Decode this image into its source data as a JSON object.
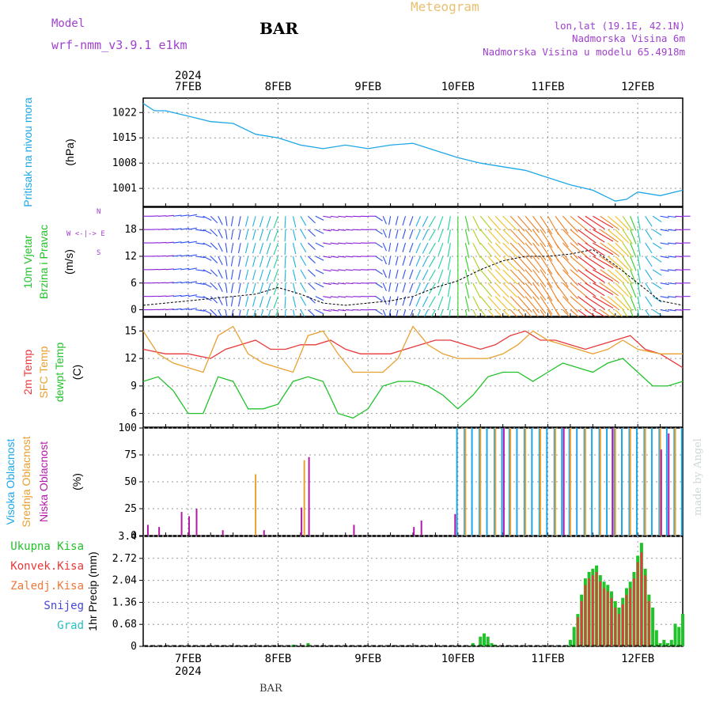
{
  "header": {
    "model_label": "Model",
    "model_name": "wrf-nmm_v3.9.1 e1km",
    "station": "BAR",
    "product": "Meteogram",
    "coords": "lon,lat (19.1E, 42.1N)",
    "elevation": "Nadmorska Visina 6m",
    "model_elevation": "Nadmorska Visina u modelu 65.4918m",
    "footer_station": "BAR",
    "watermark": "made by Angel"
  },
  "colors": {
    "pressure": "#1ea7e6",
    "temp2m": "#e8383a",
    "sfctemp": "#e8a030",
    "dewpoint": "#22c22a",
    "cloud_high": "#1ea7e6",
    "cloud_mid": "#e8a030",
    "cloud_low": "#b21aa8",
    "precip_total": "#22c22a",
    "precip_conv": "#e8383a",
    "precip_frozen": "#f07838",
    "precip_snow": "#4646d8",
    "precip_hail": "#25bfbf",
    "model_purple": "#a040d0"
  },
  "chart_data": {
    "type": "meteogram",
    "time_axis": {
      "year": "2024",
      "ticks": [
        "7FEB",
        "8FEB",
        "9FEB",
        "10FEB",
        "11FEB",
        "12FEB"
      ],
      "start_hour": -12,
      "end_hour": 132
    },
    "panels": [
      {
        "id": "pressure",
        "ylabel": [
          "Pritisak na nivou mora",
          "(hPa)"
        ],
        "yticks": [
          1001,
          1008,
          1015,
          1022
        ],
        "ylim": [
          996,
          1026
        ],
        "series": [
          {
            "name": "Pritisak na nivou mora",
            "x": [
              -12,
              -9,
              -6,
              0,
              6,
              12,
              18,
              24,
              30,
              36,
              42,
              48,
              54,
              60,
              66,
              72,
              78,
              84,
              90,
              96,
              102,
              108,
              114,
              117,
              120,
              126,
              132
            ],
            "y": [
              1024.5,
              1022.5,
              1022.5,
              1021,
              1019.5,
              1019,
              1016,
              1015,
              1013,
              1012,
              1013,
              1012,
              1013,
              1013.5,
              1011.5,
              1009.5,
              1008,
              1007,
              1006,
              1004,
              1002,
              1000.5,
              997.5,
              998,
              1000,
              999,
              1000.5
            ]
          }
        ]
      },
      {
        "id": "wind",
        "ylabel": [
          "10m Vjetar",
          "Brzina i Pravac",
          "(m/s)"
        ],
        "legend": [
          "N",
          "W",
          "<-",
          "|",
          "->",
          "E",
          "S"
        ],
        "yticks": [
          0,
          6,
          12,
          18
        ],
        "ylim": [
          -1.5,
          23
        ],
        "series": [
          {
            "name": "Brzina",
            "x": [
              -12,
              -6,
              0,
              6,
              12,
              18,
              24,
              30,
              36,
              42,
              48,
              54,
              60,
              66,
              72,
              78,
              84,
              90,
              96,
              102,
              108,
              114,
              120,
              126,
              132
            ],
            "y": [
              1,
              1.5,
              2,
              2.5,
              3,
              3.5,
              5,
              3.5,
              1.5,
              1,
              1.5,
              2,
              3,
              5,
              6.5,
              9,
              11,
              12,
              12,
              12.5,
              13.5,
              10,
              6,
              2,
              1
            ]
          }
        ],
        "direction_deg_by_hour": {
          "x": [
            -12,
            0,
            12,
            24,
            36,
            48,
            54,
            60,
            66,
            72,
            78,
            84,
            90,
            96,
            102,
            108,
            114,
            120,
            126,
            132
          ],
          "deg": [
            90,
            80,
            190,
            200,
            100,
            90,
            190,
            200,
            210,
            180,
            140,
            135,
            140,
            150,
            130,
            120,
            135,
            170,
            100,
            90
          ]
        }
      },
      {
        "id": "temperature",
        "ylabel": [
          "2m Temp",
          "SFC Temp",
          "dewpt Temp",
          "(C)"
        ],
        "yticks": [
          6,
          9,
          12,
          15
        ],
        "ylim": [
          4.5,
          16.5
        ],
        "series": [
          {
            "name": "2m Temp",
            "x": [
              -12,
              -6,
              0,
              6,
              10,
              14,
              18,
              22,
              26,
              30,
              34,
              38,
              42,
              46,
              50,
              54,
              58,
              62,
              66,
              70,
              74,
              78,
              82,
              86,
              90,
              94,
              98,
              102,
              106,
              110,
              114,
              118,
              122,
              126,
              132
            ],
            "y": [
              13,
              12.5,
              12.5,
              12,
              13,
              13.5,
              14,
              13,
              13,
              13.5,
              13.5,
              14,
              13,
              12.5,
              12.5,
              12.5,
              13,
              13.5,
              14,
              14,
              13.5,
              13,
              13.5,
              14.5,
              15,
              14,
              14,
              13.5,
              13,
              13.5,
              14,
              14.5,
              13,
              12.5,
              11
            ]
          },
          {
            "name": "SFC Temp",
            "x": [
              -12,
              -8,
              -4,
              0,
              4,
              8,
              12,
              16,
              20,
              24,
              28,
              32,
              36,
              40,
              44,
              48,
              52,
              56,
              60,
              64,
              68,
              72,
              76,
              80,
              84,
              88,
              92,
              96,
              100,
              104,
              108,
              112,
              116,
              120,
              126,
              132
            ],
            "y": [
              15,
              12.5,
              11.5,
              11,
              10.5,
              14.5,
              15.5,
              12.5,
              11.5,
              11,
              10.5,
              14.5,
              15,
              12.5,
              10.5,
              10.5,
              10.5,
              12,
              15.5,
              13.5,
              12.5,
              12,
              12,
              12,
              12.5,
              13.5,
              15,
              14,
              13.5,
              13,
              12.5,
              13,
              14,
              13,
              12.5,
              12.5
            ]
          },
          {
            "name": "dewpt Temp",
            "x": [
              -12,
              -8,
              -4,
              0,
              4,
              8,
              12,
              16,
              20,
              24,
              28,
              32,
              36,
              40,
              44,
              48,
              52,
              56,
              60,
              64,
              68,
              72,
              76,
              80,
              84,
              88,
              92,
              96,
              100,
              104,
              108,
              112,
              116,
              120,
              124,
              128,
              132
            ],
            "y": [
              9.5,
              10,
              8.5,
              6,
              6,
              10,
              9.5,
              6.5,
              6.5,
              7,
              9.5,
              10,
              9.5,
              6,
              5.5,
              6.5,
              9,
              9.5,
              9.5,
              9,
              8,
              6.5,
              8,
              10,
              10.5,
              10.5,
              9.5,
              10.5,
              11.5,
              11,
              10.5,
              11.5,
              12,
              10.5,
              9,
              9,
              9.5
            ]
          }
        ]
      },
      {
        "id": "clouds",
        "ylabel": [
          "Visoka Oblacnost",
          "Srednja Oblacnost",
          "Niska Oblacnost",
          "(%)"
        ],
        "yticks": [
          0,
          25,
          50,
          75,
          100
        ],
        "ylim": [
          0,
          100
        ],
        "series": [
          {
            "name": "Visoka Oblacnost",
            "x": [
              72,
              74,
              76,
              78,
              80,
              82,
              84,
              86,
              88,
              90,
              92,
              94,
              96,
              98,
              100,
              102,
              104,
              106,
              108,
              110,
              112,
              114,
              116,
              118,
              120,
              122,
              124,
              126,
              128,
              130,
              132
            ],
            "y": [
              100,
              100,
              100,
              100,
              100,
              100,
              100,
              100,
              100,
              100,
              100,
              100,
              100,
              100,
              100,
              100,
              100,
              100,
              100,
              100,
              100,
              100,
              100,
              100,
              100,
              100,
              100,
              100,
              100,
              100,
              100
            ]
          },
          {
            "name": "Srednja Oblacnost",
            "x": [
              18,
              31,
              74,
              78,
              82,
              86,
              90,
              94,
              98,
              102,
              106,
              110,
              114,
              118,
              122,
              126,
              130
            ],
            "y": [
              57,
              70,
              100,
              100,
              100,
              100,
              100,
              100,
              100,
              100,
              100,
              100,
              100,
              100,
              100,
              100,
              100
            ]
          },
          {
            "name": "Niska Oblacnost",
            "x": [
              -11,
              -8,
              -2,
              0,
              2,
              9,
              20,
              30,
              32,
              44,
              60,
              62,
              71,
              84,
              100,
              113,
              126,
              128
            ],
            "y": [
              10,
              8,
              22,
              18,
              25,
              5,
              5,
              26,
              73,
              10,
              8,
              14,
              20,
              100,
              100,
              100,
              80,
              95
            ]
          }
        ]
      },
      {
        "id": "precip",
        "ylabel": [
          "1hr Precip (mm)"
        ],
        "legend": [
          "Ukupna Kisa",
          "Konvek.Kisa",
          "Zaledj.Kisa",
          "Snijeg",
          "Grad"
        ],
        "yticks": [
          0,
          0.68,
          1.36,
          2.04,
          2.72,
          3.4
        ],
        "ylim": [
          0,
          3.4
        ],
        "series": [
          {
            "name": "Ukupna Kisa",
            "x": [
              28,
              32,
              76,
              78,
              79,
              80,
              81,
              82,
              102,
              103,
              104,
              105,
              106,
              107,
              108,
              109,
              110,
              111,
              112,
              113,
              114,
              115,
              116,
              117,
              118,
              119,
              120,
              121,
              122,
              123,
              124,
              125,
              126,
              127,
              128,
              129,
              130,
              131,
              132
            ],
            "y": [
              0.05,
              0.1,
              0.1,
              0.3,
              0.4,
              0.3,
              0.1,
              0.05,
              0.2,
              0.6,
              1.0,
              1.6,
              2.1,
              2.3,
              2.4,
              2.5,
              2.2,
              2.0,
              1.9,
              1.7,
              1.4,
              1.2,
              1.5,
              1.8,
              2.0,
              2.3,
              2.8,
              3.2,
              2.4,
              1.6,
              1.2,
              0.5,
              0.1,
              0.2,
              0.1,
              0.2,
              0.7,
              0.6,
              1.0
            ]
          },
          {
            "name": "Konvek.Kisa",
            "x": [
              104,
              105,
              106,
              107,
              108,
              109,
              110,
              111,
              112,
              113,
              114,
              115,
              116,
              117,
              118,
              119,
              120,
              121,
              122,
              123
            ],
            "y": [
              0.9,
              1.4,
              1.9,
              2.1,
              2.2,
              2.3,
              2.0,
              1.8,
              1.7,
              1.5,
              1.2,
              1.0,
              1.3,
              1.6,
              1.8,
              2.1,
              2.6,
              2.9,
              2.2,
              1.4
            ]
          }
        ]
      }
    ]
  }
}
